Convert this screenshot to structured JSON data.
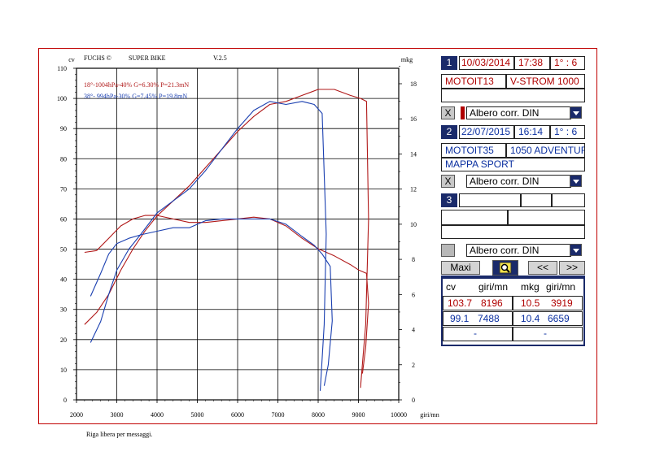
{
  "header": {
    "brand": "FUCHS ©",
    "model": "SUPER BIKE",
    "version": "V.2.5"
  },
  "footer": "Riga libera per messaggi.",
  "chart_data": {
    "type": "line",
    "xlabel": "giri/mn",
    "ylabel_left": "cv",
    "ylabel_right": "mkg",
    "xlim": [
      2000,
      10000
    ],
    "ylim_left": [
      0,
      110
    ],
    "ylim_right": [
      0,
      19
    ],
    "x_ticks": [
      2000,
      3000,
      4000,
      5000,
      6000,
      7000,
      8000,
      9000,
      10000
    ],
    "y_left_ticks": [
      0,
      10,
      20,
      30,
      40,
      50,
      60,
      70,
      80,
      90,
      100,
      110
    ],
    "y_right_ticks": [
      0,
      2,
      4,
      6,
      8,
      10,
      12,
      14,
      16,
      18
    ],
    "grid": true,
    "colors": {
      "run1": "#b01818",
      "run2": "#1a3fb0"
    },
    "annotations": [
      {
        "text": "18°-1004hPa-40% G=6.30% P=21.3mN",
        "color": "#b01818"
      },
      {
        "text": "38°- 994hPa-30% G=7.45% P=19.8mN",
        "color": "#1a3fb0"
      }
    ],
    "series": [
      {
        "run": 1,
        "quantity": "cv",
        "axis": "left",
        "x": [
          2200,
          2500,
          2800,
          3100,
          3400,
          3700,
          4000,
          4400,
          4800,
          5200,
          5600,
          6000,
          6400,
          6800,
          7200,
          7600,
          8000,
          8400,
          8800,
          9050,
          9200,
          9250,
          9180,
          9100,
          9050
        ],
        "y": [
          25,
          29,
          35,
          43,
          50,
          56,
          61,
          66,
          71,
          77,
          83,
          89,
          94,
          98,
          99,
          101,
          103,
          103,
          101,
          100,
          99,
          60,
          25,
          12,
          4
        ]
      },
      {
        "run": 1,
        "quantity": "mkg",
        "axis": "right",
        "x": [
          2200,
          2500,
          2800,
          3100,
          3400,
          3700,
          4000,
          4400,
          4800,
          5200,
          5600,
          6000,
          6400,
          6800,
          7200,
          7600,
          8000,
          8400,
          8800,
          9000,
          9200,
          9250,
          9180,
          9100
        ],
        "y": [
          8.4,
          8.5,
          9.2,
          9.9,
          10.3,
          10.5,
          10.5,
          10.3,
          10.1,
          10.1,
          10.2,
          10.3,
          10.4,
          10.3,
          9.9,
          9.2,
          8.6,
          8.2,
          7.7,
          7.4,
          7.2,
          5.5,
          3.0,
          1.5
        ]
      },
      {
        "run": 2,
        "quantity": "cv",
        "axis": "left",
        "x": [
          2350,
          2600,
          2800,
          3000,
          3300,
          3600,
          4000,
          4400,
          4800,
          5200,
          5600,
          6000,
          6400,
          6800,
          7200,
          7600,
          7900,
          8100,
          8200,
          8150,
          8050
        ],
        "y": [
          19,
          26,
          35,
          43,
          50,
          55,
          62,
          66,
          70,
          76,
          83,
          90,
          96,
          99,
          98,
          99,
          98,
          95,
          55,
          25,
          3
        ]
      },
      {
        "run": 2,
        "quantity": "mkg",
        "axis": "right",
        "x": [
          2350,
          2600,
          2800,
          3000,
          3300,
          3600,
          4000,
          4400,
          4800,
          5200,
          5600,
          6000,
          6400,
          6800,
          7200,
          7600,
          7900,
          8100,
          8300,
          8350,
          8250,
          8150
        ],
        "y": [
          5.9,
          7.2,
          8.3,
          8.9,
          9.2,
          9.4,
          9.6,
          9.8,
          9.8,
          10.2,
          10.3,
          10.3,
          10.3,
          10.3,
          10.0,
          9.3,
          8.8,
          8.3,
          7.6,
          4.5,
          2.0,
          0.8
        ]
      }
    ]
  },
  "panel": {
    "run1": {
      "num": "1",
      "date": "10/03/2014",
      "time": "17:38",
      "ratio": "1° : 6",
      "code": "MOTOIT13",
      "bike": "V-STROM 1000",
      "note": "",
      "correction": "Albero corr. DIN",
      "remove": "X"
    },
    "run2": {
      "num": "2",
      "date": "22/07/2015",
      "time": "16:14",
      "ratio": "1° : 6",
      "code": "MOTOIT35",
      "bike": "1050 ADVENTUF",
      "note": "MAPPA SPORT",
      "correction": "Albero corr. DIN",
      "remove": "X"
    },
    "run3": {
      "num": "3",
      "correction": "Albero corr. DIN"
    },
    "buttons": {
      "maxi": "Maxi",
      "prev": "<<",
      "next": ">>",
      "zoom_icon": "magnifier-icon"
    },
    "results": {
      "headers": [
        "cv",
        "giri/mn",
        "mkg",
        "giri/mn"
      ],
      "row1": {
        "cv": "103.7",
        "cv_rpm": "8196",
        "mkg": "10.5",
        "mkg_rpm": "3919"
      },
      "row2": {
        "cv": "99.1",
        "cv_rpm": "7488",
        "mkg": "10.4",
        "mkg_rpm": "6659"
      },
      "row3": {
        "cv": "-",
        "mkg": "-"
      }
    }
  }
}
